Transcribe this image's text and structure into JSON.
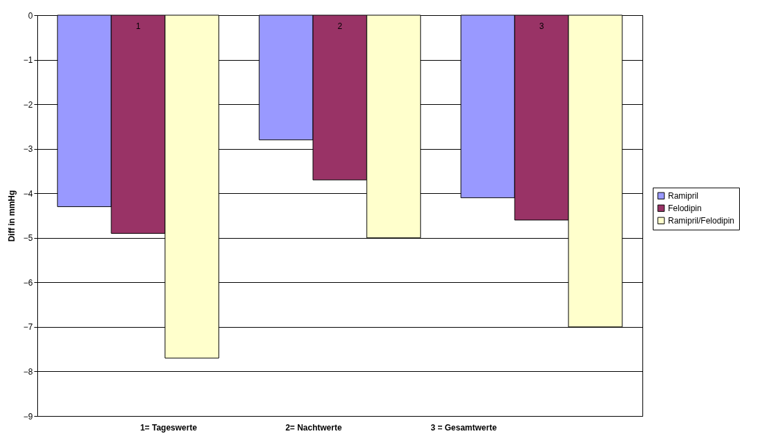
{
  "chart_data": {
    "type": "bar",
    "ylabel": "Diff in mmHg",
    "categories": [
      "1",
      "2",
      "3"
    ],
    "series": [
      {
        "name": "Ramipril",
        "color": "#9999ff",
        "values": [
          -4.3,
          -2.8,
          -4.1
        ]
      },
      {
        "name": "Felodipin",
        "color": "#993366",
        "values": [
          -4.9,
          -3.7,
          -4.6
        ]
      },
      {
        "name": "Ramipril/Felodipin",
        "color": "#ffffcc",
        "values": [
          -7.7,
          -5.0,
          -7.0
        ]
      }
    ],
    "ylim": [
      -9,
      0
    ],
    "yticks": [
      0,
      -1,
      -2,
      -3,
      -4,
      -5,
      -6,
      -7,
      -8,
      -9
    ],
    "grid": "y",
    "legend": "right",
    "annotations": [
      "1= Tageswerte",
      "2= Nachtwerte",
      "3 = Gesamtwerte"
    ]
  }
}
